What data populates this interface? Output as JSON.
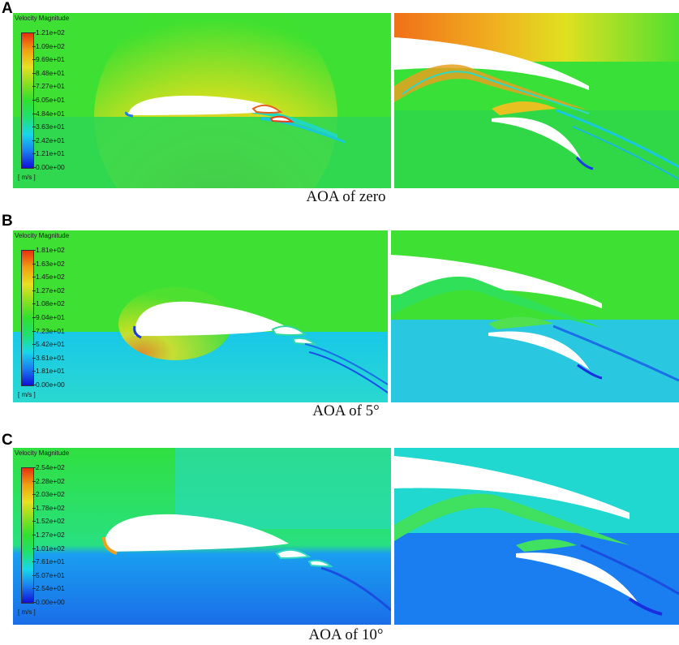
{
  "panels": [
    {
      "letter": "A",
      "caption": "AOA of zero",
      "legend_title": "Velocity Magnitude",
      "unit": "[ m/s ]",
      "ticks": [
        "1.21e+02",
        "1.09e+02",
        "9.69e+01",
        "8.48e+01",
        "7.27e+01",
        "6.05e+01",
        "4.84e+01",
        "3.63e+01",
        "2.42e+01",
        "1.21e+01",
        "0.00e+00"
      ]
    },
    {
      "letter": "B",
      "caption": "AOA of 5°",
      "legend_title": "Velocity Magnitude",
      "unit": "[ m/s ]",
      "ticks": [
        "1.81e+02",
        "1.63e+02",
        "1.45e+02",
        "1.27e+02",
        "1.08e+02",
        "9.04e+01",
        "7.23e+01",
        "5.42e+01",
        "3.61e+01",
        "1.81e+01",
        "0.00e+00"
      ]
    },
    {
      "letter": "C",
      "caption": "AOA of 10°",
      "legend_title": "Velocity Magnitude",
      "unit": "[ m/s ]",
      "ticks": [
        "2.54e+02",
        "2.28e+02",
        "2.03e+02",
        "1.78e+02",
        "1.52e+02",
        "1.27e+02",
        "1.01e+02",
        "7.61e+01",
        "5.07e+01",
        "2.54e+01",
        "0.00e+00"
      ]
    }
  ],
  "colors": {
    "colormap": [
      "#1010d8",
      "#1a7ff0",
      "#18d8e8",
      "#20e070",
      "#30e030",
      "#88e020",
      "#e8e020",
      "#f0a010",
      "#e83010"
    ]
  }
}
